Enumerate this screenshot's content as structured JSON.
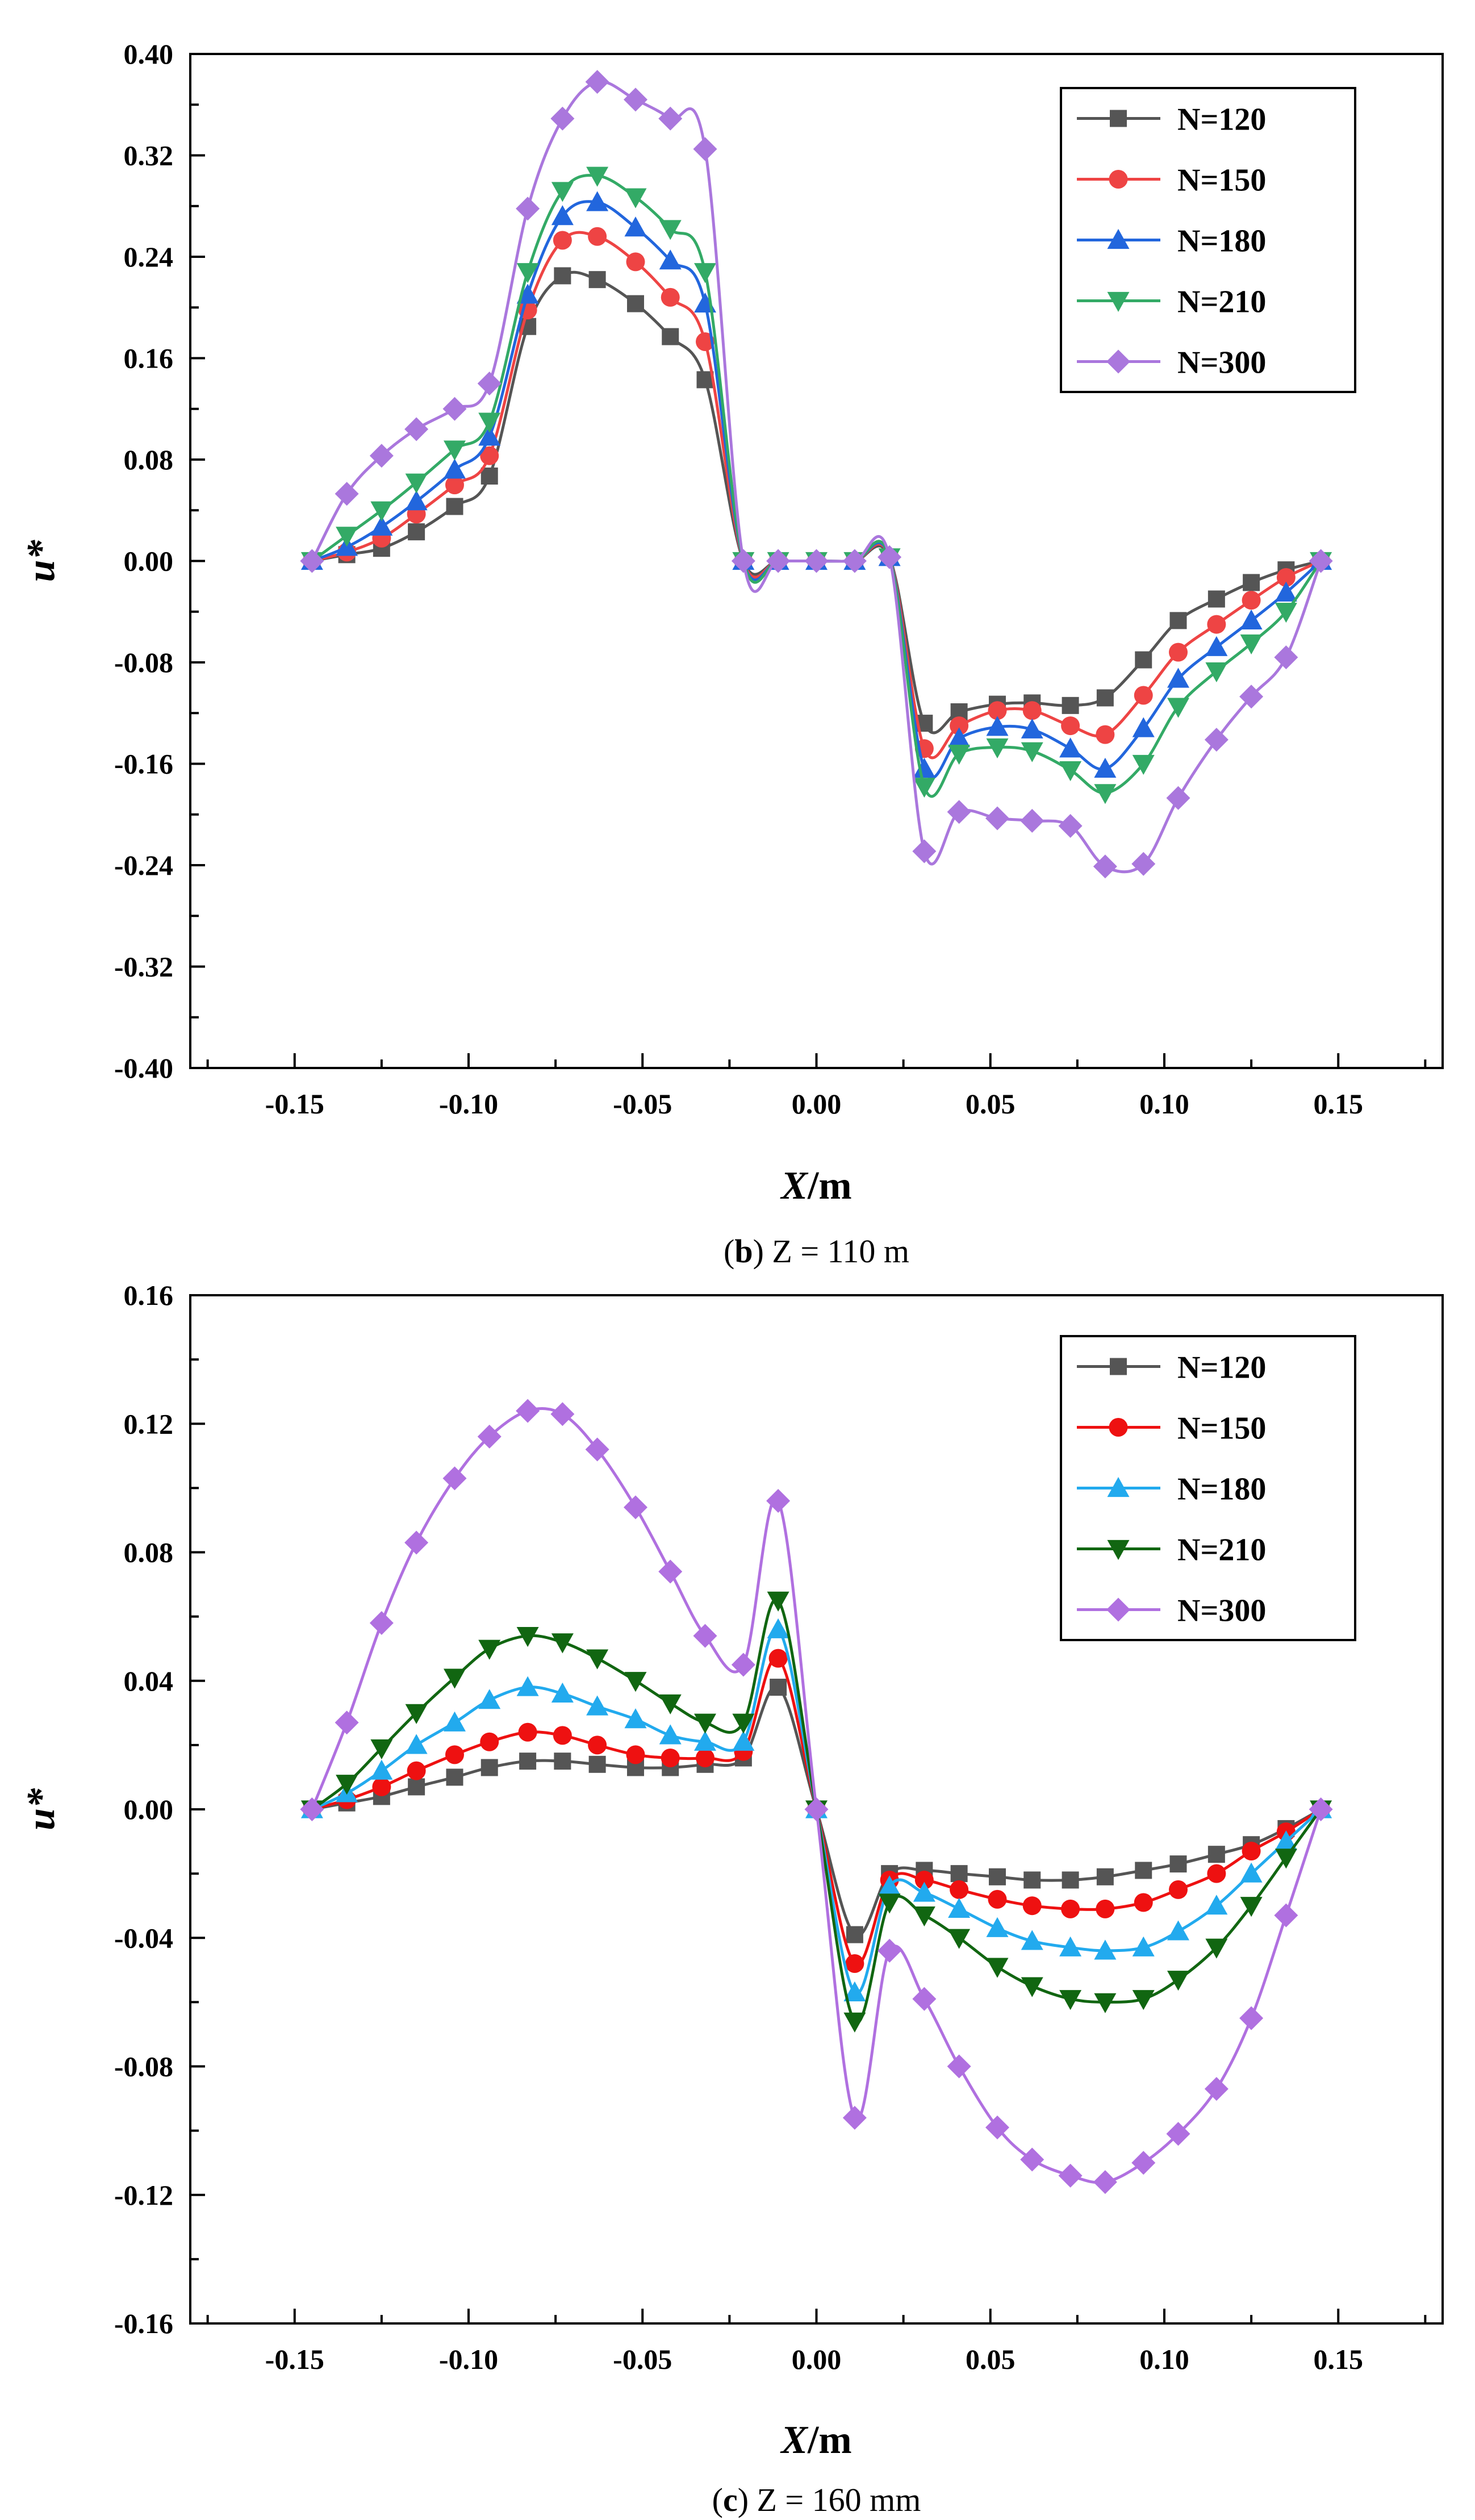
{
  "chart_data": [
    {
      "type": "line",
      "panel": "b",
      "caption_letter": "b",
      "caption_text": ") Z = 110 m",
      "xlabel_var": "X",
      "xlabel_unit": "/m",
      "ylabel": "u*",
      "xlim": [
        -0.18,
        0.18
      ],
      "ylim": [
        -0.4,
        0.4
      ],
      "xticks": [
        -0.15,
        -0.1,
        -0.05,
        0.0,
        0.05,
        0.1,
        0.15
      ],
      "xtick_labels": [
        "-0.15",
        "-0.10",
        "-0.05",
        "0.00",
        "0.05",
        "0.10",
        "0.15"
      ],
      "yticks": [
        -0.4,
        -0.32,
        -0.24,
        -0.16,
        -0.08,
        0.0,
        0.08,
        0.16,
        0.24,
        0.32,
        0.4
      ],
      "ytick_labels": [
        "-0.40",
        "-0.32",
        "-0.24",
        "-0.16",
        "-0.08",
        "0.00",
        "0.08",
        "0.16",
        "0.24",
        "0.32",
        "0.40"
      ],
      "legend_position": "top-right",
      "x": [
        -0.145,
        -0.135,
        -0.125,
        -0.115,
        -0.104,
        -0.094,
        -0.083,
        -0.073,
        -0.063,
        -0.052,
        -0.042,
        -0.032,
        -0.021,
        -0.011,
        0.0,
        0.011,
        0.021,
        0.031,
        0.041,
        0.052,
        0.062,
        0.073,
        0.083,
        0.094,
        0.104,
        0.115,
        0.125,
        0.135,
        0.145
      ],
      "series": [
        {
          "name": "N=120",
          "color": "#555555",
          "marker": "square",
          "values": [
            0.0,
            0.005,
            0.01,
            0.023,
            0.043,
            0.067,
            0.185,
            0.225,
            0.222,
            0.203,
            0.177,
            0.143,
            0.0,
            0.0,
            0.0,
            0.0,
            0.003,
            -0.128,
            -0.119,
            -0.113,
            -0.112,
            -0.114,
            -0.108,
            -0.078,
            -0.047,
            -0.03,
            -0.017,
            -0.007,
            0.0
          ]
        },
        {
          "name": "N=150",
          "color": "#ee4444",
          "marker": "circle",
          "values": [
            0.0,
            0.007,
            0.018,
            0.037,
            0.06,
            0.083,
            0.198,
            0.253,
            0.256,
            0.236,
            0.208,
            0.173,
            0.0,
            0.0,
            0.0,
            0.0,
            0.003,
            -0.148,
            -0.13,
            -0.118,
            -0.118,
            -0.13,
            -0.137,
            -0.106,
            -0.072,
            -0.05,
            -0.031,
            -0.013,
            0.0
          ]
        },
        {
          "name": "N=180",
          "color": "#2266dd",
          "marker": "triangle-up",
          "values": [
            0.0,
            0.011,
            0.027,
            0.047,
            0.072,
            0.098,
            0.21,
            0.272,
            0.283,
            0.263,
            0.237,
            0.203,
            0.0,
            0.0,
            0.0,
            0.0,
            0.003,
            -0.164,
            -0.14,
            -0.131,
            -0.133,
            -0.148,
            -0.164,
            -0.132,
            -0.093,
            -0.068,
            -0.047,
            -0.025,
            0.0
          ]
        },
        {
          "name": "N=210",
          "color": "#33aa66",
          "marker": "triangle-down",
          "values": [
            0.0,
            0.02,
            0.04,
            0.062,
            0.088,
            0.11,
            0.228,
            0.292,
            0.304,
            0.287,
            0.262,
            0.228,
            0.0,
            0.0,
            0.0,
            0.0,
            0.003,
            -0.178,
            -0.152,
            -0.147,
            -0.15,
            -0.165,
            -0.183,
            -0.16,
            -0.115,
            -0.087,
            -0.065,
            -0.04,
            0.0
          ]
        },
        {
          "name": "N=300",
          "color": "#aa77dd",
          "marker": "diamond",
          "values": [
            0.0,
            0.053,
            0.083,
            0.104,
            0.12,
            0.14,
            0.278,
            0.349,
            0.378,
            0.364,
            0.349,
            0.325,
            0.0,
            0.0,
            0.0,
            0.0,
            0.003,
            -0.229,
            -0.198,
            -0.203,
            -0.205,
            -0.209,
            -0.241,
            -0.239,
            -0.187,
            -0.141,
            -0.107,
            -0.076,
            0.0
          ]
        }
      ]
    },
    {
      "type": "line",
      "panel": "c",
      "caption_letter": "c",
      "caption_text": ") Z = 160 mm",
      "xlabel_var": "X",
      "xlabel_unit": "/m",
      "ylabel": "u*",
      "xlim": [
        -0.18,
        0.18
      ],
      "ylim": [
        -0.16,
        0.16
      ],
      "xticks": [
        -0.15,
        -0.1,
        -0.05,
        0.0,
        0.05,
        0.1,
        0.15
      ],
      "xtick_labels": [
        "-0.15",
        "-0.10",
        "-0.05",
        "0.00",
        "0.05",
        "0.10",
        "0.15"
      ],
      "yticks": [
        -0.16,
        -0.12,
        -0.08,
        -0.04,
        0.0,
        0.04,
        0.08,
        0.12,
        0.16
      ],
      "ytick_labels": [
        "-0.16",
        "-0.12",
        "-0.08",
        "-0.04",
        "0.00",
        "0.04",
        "0.08",
        "0.12",
        "0.16"
      ],
      "legend_position": "top-right",
      "x": [
        -0.145,
        -0.135,
        -0.125,
        -0.115,
        -0.104,
        -0.094,
        -0.083,
        -0.073,
        -0.063,
        -0.052,
        -0.042,
        -0.032,
        -0.021,
        -0.011,
        0.0,
        0.011,
        0.021,
        0.031,
        0.041,
        0.052,
        0.062,
        0.073,
        0.083,
        0.094,
        0.104,
        0.115,
        0.125,
        0.135,
        0.145
      ],
      "series": [
        {
          "name": "N=120",
          "color": "#555555",
          "marker": "square",
          "values": [
            0.0,
            0.002,
            0.004,
            0.007,
            0.01,
            0.013,
            0.015,
            0.015,
            0.014,
            0.013,
            0.013,
            0.014,
            0.016,
            0.038,
            0.0,
            -0.039,
            -0.02,
            -0.019,
            -0.02,
            -0.021,
            -0.022,
            -0.022,
            -0.021,
            -0.019,
            -0.017,
            -0.014,
            -0.011,
            -0.006,
            0.0
          ]
        },
        {
          "name": "N=150",
          "color": "#ee1111",
          "marker": "circle",
          "values": [
            0.0,
            0.003,
            0.007,
            0.012,
            0.017,
            0.021,
            0.024,
            0.023,
            0.02,
            0.017,
            0.016,
            0.016,
            0.018,
            0.047,
            0.0,
            -0.048,
            -0.022,
            -0.022,
            -0.025,
            -0.028,
            -0.03,
            -0.031,
            -0.031,
            -0.029,
            -0.025,
            -0.02,
            -0.013,
            -0.007,
            0.0
          ]
        },
        {
          "name": "N=180",
          "color": "#22aaee",
          "marker": "triangle-up",
          "values": [
            0.0,
            0.005,
            0.012,
            0.02,
            0.027,
            0.034,
            0.038,
            0.036,
            0.032,
            0.028,
            0.023,
            0.021,
            0.021,
            0.056,
            0.0,
            -0.057,
            -0.024,
            -0.026,
            -0.031,
            -0.037,
            -0.041,
            -0.043,
            -0.044,
            -0.043,
            -0.038,
            -0.03,
            -0.02,
            -0.01,
            0.0
          ]
        },
        {
          "name": "N=210",
          "color": "#116611",
          "marker": "triangle-down",
          "values": [
            0.0,
            0.008,
            0.019,
            0.03,
            0.041,
            0.05,
            0.054,
            0.052,
            0.047,
            0.04,
            0.033,
            0.027,
            0.027,
            0.065,
            0.0,
            -0.066,
            -0.029,
            -0.033,
            -0.04,
            -0.049,
            -0.055,
            -0.059,
            -0.06,
            -0.059,
            -0.053,
            -0.043,
            -0.03,
            -0.015,
            0.0
          ]
        },
        {
          "name": "N=300",
          "color": "#b070e0",
          "marker": "diamond",
          "values": [
            0.0,
            0.027,
            0.058,
            0.083,
            0.103,
            0.116,
            0.124,
            0.123,
            0.112,
            0.094,
            0.074,
            0.054,
            0.045,
            0.096,
            0.0,
            -0.096,
            -0.044,
            -0.059,
            -0.08,
            -0.099,
            -0.109,
            -0.114,
            -0.116,
            -0.11,
            -0.101,
            -0.087,
            -0.065,
            -0.033,
            0.0
          ]
        }
      ]
    }
  ]
}
